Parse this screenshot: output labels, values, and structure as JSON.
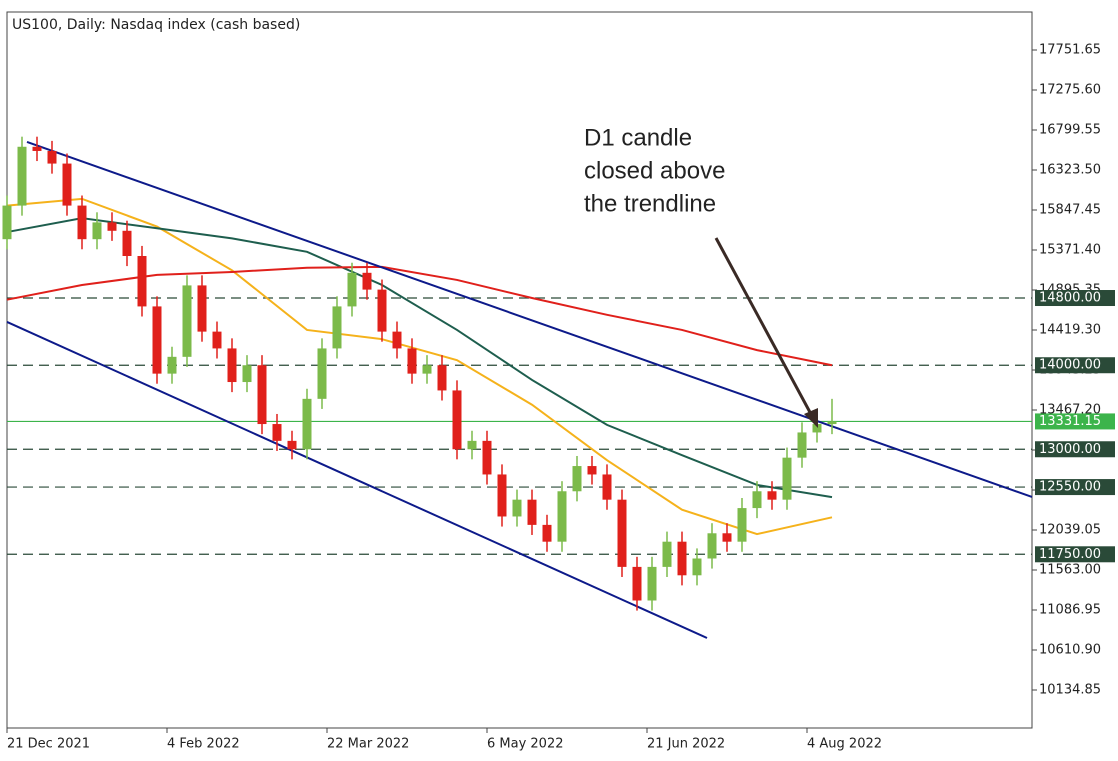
{
  "chart_data": {
    "type": "candlestick",
    "title": "US100, Daily:  Nasdaq index (cash based)",
    "annotation": [
      "D1 candle",
      "closed above",
      "the trendline"
    ],
    "xlim": [
      0,
      205
    ],
    "xticks": [
      {
        "value": 0,
        "label": "21 Dec 2021"
      },
      {
        "value": 32,
        "label": "4 Feb 2022"
      },
      {
        "value": 64,
        "label": "22 Mar 2022"
      },
      {
        "value": 96,
        "label": "6 May 2022"
      },
      {
        "value": 128,
        "label": "21 Jun 2022"
      },
      {
        "value": 160,
        "label": "4 Aug 2022"
      }
    ],
    "ylim": [
      9682.6,
      18203.9
    ],
    "yticks": [
      17751.65,
      {
        "value": 17275.6,
        "label": "17275.60"
      },
      16799.55,
      {
        "value": 16323.5,
        "label": "16323.50"
      },
      15847.45,
      {
        "value": 15371.4,
        "label": "15371.40"
      },
      14895.35,
      {
        "value": 14419.3,
        "label": "14419.30"
      },
      13943.25,
      {
        "value": 13467.2,
        "label": "13467.20"
      },
      12991.15,
      {
        "value": 12515.1,
        "label": "12515.10"
      },
      12039.05,
      {
        "value": 11563,
        "label": "11563.00"
      },
      11086.95,
      {
        "value": 10610.9,
        "label": "10610.90"
      },
      10134.85
    ],
    "up_color": "#7cba4a",
    "down_color": "#e0201b",
    "x": [
      0,
      3,
      6,
      9,
      12,
      15,
      18,
      21,
      24,
      27,
      30,
      33,
      36,
      39,
      42,
      45,
      48,
      51,
      54,
      57,
      60,
      63,
      66,
      69,
      72,
      75,
      78,
      81,
      84,
      87,
      90,
      93,
      96,
      99,
      102,
      105,
      108,
      111,
      114,
      117,
      120,
      123,
      126,
      129,
      132,
      135,
      138,
      141,
      144,
      147,
      150,
      153,
      156,
      159,
      162,
      165
    ],
    "open": [
      15500,
      15900,
      16600,
      16550,
      16400,
      15900,
      15500,
      15700,
      15600,
      15300,
      14700,
      13900,
      14100,
      14950,
      14400,
      14200,
      13800,
      14000,
      13300,
      13100,
      13000,
      13600,
      14200,
      14700,
      15100,
      14900,
      14400,
      14200,
      13900,
      14000,
      13700,
      13000,
      13100,
      12700,
      12200,
      12400,
      12100,
      11900,
      12500,
      12800,
      12700,
      12400,
      11600,
      11200,
      11600,
      11900,
      11500,
      11700,
      12000,
      11900,
      12300,
      12500,
      12400,
      12900,
      13200,
      13300
    ],
    "high": [
      16020,
      16720,
      16720,
      16670,
      16520,
      16020,
      15820,
      15820,
      15720,
      15420,
      14820,
      14220,
      15070,
      15070,
      14520,
      14320,
      14120,
      14120,
      13420,
      13220,
      13720,
      14320,
      14820,
      15220,
      15220,
      15020,
      14520,
      14320,
      14120,
      14120,
      13820,
      13220,
      13220,
      12820,
      12520,
      12520,
      12220,
      12620,
      12920,
      12920,
      12820,
      12520,
      11720,
      11720,
      12020,
      12020,
      11820,
      12120,
      12120,
      12420,
      12620,
      12620,
      13020,
      13320,
      13420,
      13600
    ],
    "low": [
      15380,
      15780,
      16430,
      16280,
      15780,
      15380,
      15380,
      15480,
      15180,
      14580,
      13780,
      13780,
      13980,
      14280,
      14080,
      13680,
      13680,
      13180,
      12980,
      12880,
      12880,
      13480,
      14080,
      14580,
      14780,
      14280,
      14080,
      13780,
      13780,
      13580,
      12880,
      12880,
      12580,
      12080,
      12080,
      11980,
      11780,
      11780,
      12380,
      12580,
      12280,
      11480,
      11080,
      11080,
      11480,
      11380,
      11380,
      11580,
      11780,
      11780,
      12180,
      12280,
      12280,
      12780,
      13080,
      13180
    ],
    "close": [
      15900,
      16600,
      16550,
      16400,
      15900,
      15500,
      15700,
      15600,
      15300,
      14700,
      13900,
      14100,
      14950,
      14400,
      14200,
      13800,
      14000,
      13300,
      13100,
      13000,
      13600,
      14200,
      14700,
      15100,
      14900,
      14400,
      14200,
      13900,
      14000,
      13700,
      13000,
      13100,
      12700,
      12200,
      12400,
      12100,
      11900,
      12500,
      12800,
      12700,
      12400,
      11600,
      11200,
      11600,
      11900,
      11500,
      11700,
      12000,
      11900,
      12300,
      12500,
      12400,
      12900,
      13200,
      13300,
      13331.15
    ],
    "moving_averages": [
      {
        "color": "#f5b21b",
        "x": [
          0,
          15,
          30,
          45,
          60,
          75,
          90,
          105,
          120,
          135,
          150,
          165
        ],
        "values": [
          15900,
          15980,
          15650,
          15130,
          14420,
          14310,
          14060,
          13530,
          12870,
          12280,
          11990,
          12190
        ]
      },
      {
        "color": "#1e5e4e",
        "x": [
          0,
          15,
          30,
          45,
          60,
          75,
          90,
          105,
          120,
          135,
          150,
          165
        ],
        "values": [
          15585,
          15750,
          15630,
          15510,
          15350,
          14955,
          14420,
          13825,
          13290,
          12930,
          12575,
          12430
        ]
      },
      {
        "color": "#e0201b",
        "x": [
          0,
          15,
          30,
          45,
          60,
          75,
          90,
          105,
          120,
          135,
          150,
          165
        ],
        "values": [
          14780,
          14955,
          15075,
          15110,
          15160,
          15170,
          15015,
          14800,
          14600,
          14420,
          14180,
          14000
        ]
      }
    ],
    "trendlines": [
      {
        "color": "#0d1a8a",
        "x": [
          4,
          205
        ],
        "values": [
          16657,
          12432
        ]
      },
      {
        "color": "#0d1a8a",
        "x": [
          0,
          140
        ],
        "values": [
          14515,
          10754
        ]
      }
    ],
    "levels": [
      {
        "value": 14800,
        "label": "14800.00"
      },
      {
        "value": 14000,
        "label": "14000.00"
      },
      13331.15,
      {
        "value": 13000,
        "label": "13000.00"
      },
      {
        "value": 12550,
        "label": "12550.00"
      },
      {
        "value": 11750,
        "label": "11750.00"
      }
    ],
    "current_price_color": "#3cb44b",
    "level_color": "#2a4a38"
  }
}
